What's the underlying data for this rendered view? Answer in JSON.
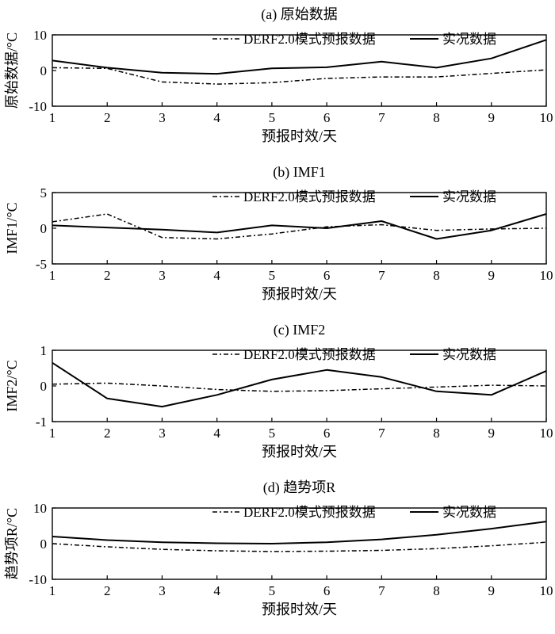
{
  "chart_data": [
    {
      "type": "line",
      "title": "(a) 原始数据",
      "xlabel": "预报时效/天",
      "ylabel": "原始数据/°C",
      "x": [
        1,
        2,
        3,
        4,
        5,
        6,
        7,
        8,
        9,
        10
      ],
      "xlim": [
        1,
        10
      ],
      "ylim": [
        -10,
        10
      ],
      "yticks": [
        -10,
        0,
        10
      ],
      "legend": "top-right",
      "series": [
        {
          "name": "DERF2.0模式预报数据",
          "style": "dashdot",
          "values": [
            0.8,
            0.6,
            -3.2,
            -3.8,
            -3.4,
            -2.2,
            -1.8,
            -1.8,
            -0.8,
            0.2
          ]
        },
        {
          "name": "实况数据",
          "style": "solid",
          "values": [
            2.8,
            0.8,
            -0.6,
            -0.9,
            0.6,
            0.9,
            2.5,
            0.8,
            3.4,
            8.6
          ]
        }
      ]
    },
    {
      "type": "line",
      "title": "(b) IMF1",
      "xlabel": "预报时效/天",
      "ylabel": "IMF1/°C",
      "x": [
        1,
        2,
        3,
        4,
        5,
        6,
        7,
        8,
        9,
        10
      ],
      "xlim": [
        1,
        10
      ],
      "ylim": [
        -5,
        5
      ],
      "yticks": [
        -5,
        0,
        5
      ],
      "legend": "top-right",
      "series": [
        {
          "name": "DERF2.0模式预报数据",
          "style": "dashdot",
          "values": [
            0.9,
            2.0,
            -1.3,
            -1.5,
            -0.8,
            0.2,
            0.5,
            -0.3,
            -0.1,
            0.0
          ]
        },
        {
          "name": "实况数据",
          "style": "solid",
          "values": [
            0.4,
            0.1,
            -0.2,
            -0.6,
            0.4,
            0.0,
            1.0,
            -1.5,
            -0.3,
            2.0
          ]
        }
      ]
    },
    {
      "type": "line",
      "title": "(c) IMF2",
      "xlabel": "预报时效/天",
      "ylabel": "IMF2/°C",
      "x": [
        1,
        2,
        3,
        4,
        5,
        6,
        7,
        8,
        9,
        10
      ],
      "xlim": [
        1,
        10
      ],
      "ylim": [
        -1,
        1
      ],
      "yticks": [
        -1,
        0,
        1
      ],
      "legend": "top-right",
      "series": [
        {
          "name": "DERF2.0模式预报数据",
          "style": "dashdot",
          "values": [
            0.05,
            0.08,
            0.0,
            -0.1,
            -0.15,
            -0.13,
            -0.08,
            -0.03,
            0.02,
            0.0
          ]
        },
        {
          "name": "实况数据",
          "style": "solid",
          "values": [
            0.65,
            -0.35,
            -0.58,
            -0.25,
            0.18,
            0.45,
            0.25,
            -0.15,
            -0.25,
            0.42
          ]
        }
      ]
    },
    {
      "type": "line",
      "title": "(d) 趋势项R",
      "xlabel": "预报时效/天",
      "ylabel": "趋势项R/°C",
      "x": [
        1,
        2,
        3,
        4,
        5,
        6,
        7,
        8,
        9,
        10
      ],
      "xlim": [
        1,
        10
      ],
      "ylim": [
        -10,
        10
      ],
      "yticks": [
        -10,
        0,
        10
      ],
      "legend": "top-right",
      "series": [
        {
          "name": "DERF2.0模式预报数据",
          "style": "dashdot",
          "values": [
            0.0,
            -0.9,
            -1.6,
            -2.0,
            -2.2,
            -2.1,
            -1.9,
            -1.4,
            -0.6,
            0.4
          ]
        },
        {
          "name": "实况数据",
          "style": "solid",
          "values": [
            2.0,
            1.0,
            0.4,
            0.1,
            0.0,
            0.4,
            1.2,
            2.5,
            4.2,
            6.2
          ]
        }
      ]
    }
  ]
}
